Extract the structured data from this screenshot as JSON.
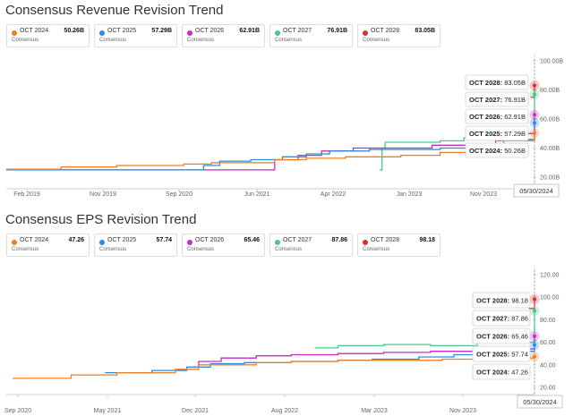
{
  "chart_data": [
    {
      "type": "line",
      "title": "Consensus Revenue Revision Trend",
      "legend_sub": "Consensus",
      "x_labels": [
        "Feb 2019",
        "Nov 2019",
        "Sep 2020",
        "Jun 2021",
        "Apr 2022",
        "Jan 2023",
        "Nov 2023"
      ],
      "y_ticks": [
        "100.00B",
        "80.00B",
        "60.00B",
        "40.00B",
        "20.00B"
      ],
      "ylim": [
        20,
        100
      ],
      "cursor_date": "05/30/2024",
      "series": [
        {
          "name": "OCT 2024",
          "value_label": "50.26B",
          "color": "#f07f21",
          "x": [
            "2018-11-01",
            "2019-06-01",
            "2020-01-01",
            "2020-09-15",
            "2021-01-01",
            "2021-09-01",
            "2022-01-01",
            "2022-06-01",
            "2023-01-01",
            "2023-06-01",
            "2023-10-01",
            "2024-02-01",
            "2024-05-30"
          ],
          "y": [
            25.5,
            27,
            28,
            29,
            30,
            32,
            33,
            34,
            35,
            37,
            40,
            45,
            50.26
          ]
        },
        {
          "name": "OCT 2025",
          "value_label": "57.29B",
          "color": "#2b8be6",
          "x": [
            "2018-11-01",
            "2020-09-01",
            "2020-12-01",
            "2021-02-01",
            "2021-06-01",
            "2021-10-01",
            "2022-01-01",
            "2022-04-01",
            "2022-09-01",
            "2023-01-01",
            "2023-06-01",
            "2023-11-01",
            "2024-02-01",
            "2024-05-30"
          ],
          "y": [
            25,
            25,
            28,
            31,
            32,
            34,
            36,
            38,
            39,
            39,
            40,
            42,
            46,
            57.29
          ]
        },
        {
          "name": "OCT 2026",
          "value_label": "62.91B",
          "color": "#c92bc3",
          "x": [
            "2018-11-01",
            "2021-06-15",
            "2021-09-01",
            "2021-12-01",
            "2022-03-01",
            "2022-07-01",
            "2023-01-01",
            "2023-05-01",
            "2023-10-01",
            "2024-01-01",
            "2024-03-01",
            "2024-05-30"
          ],
          "y": [
            25,
            25,
            32,
            35,
            38,
            40,
            40,
            42,
            43,
            45,
            50,
            62.91
          ]
        },
        {
          "name": "OCT 2027",
          "value_label": "76.91B",
          "color": "#47c98c",
          "x": [
            "2022-10-10",
            "2022-10-20",
            "2022-11-01",
            "2023-02-01",
            "2023-06-01",
            "2023-09-01",
            "2024-01-01",
            "2024-05-30"
          ],
          "y": [
            25,
            40,
            44,
            44,
            45,
            47,
            50,
            76.91
          ]
        },
        {
          "name": "OCT 2028",
          "value_label": "83.05B",
          "color": "#d6322c",
          "x": [
            "2024-05-15",
            "2024-05-30"
          ],
          "y": [
            75,
            83.05
          ]
        }
      ]
    },
    {
      "type": "line",
      "title": "Consensus EPS Revision Trend",
      "legend_sub": "Consensus",
      "x_labels": [
        "Sep 2020",
        "May 2021",
        "Dec 2021",
        "Aug 2022",
        "Mar 2023",
        "Nov 2023"
      ],
      "y_ticks": [
        "120.00",
        "100.00",
        "80.00",
        "60.00",
        "40.00",
        "20.00"
      ],
      "ylim": [
        20,
        120
      ],
      "cursor_date": "05/30/2024",
      "series": [
        {
          "name": "OCT 2024",
          "value_label": "47.26",
          "color": "#f07f21",
          "x": [
            "2020-09-01",
            "2021-02-01",
            "2021-06-01",
            "2021-11-01",
            "2022-01-01",
            "2022-06-01",
            "2022-09-01",
            "2023-01-01",
            "2023-06-01",
            "2023-10-01",
            "2024-01-01",
            "2024-05-30"
          ],
          "y": [
            28,
            31,
            33,
            36,
            40,
            42,
            43,
            44,
            44,
            45,
            46,
            47.26
          ]
        },
        {
          "name": "OCT 2025",
          "value_label": "57.74",
          "color": "#2b8be6",
          "x": [
            "2021-05-01",
            "2021-09-01",
            "2021-12-01",
            "2022-02-01",
            "2022-05-01",
            "2022-09-01",
            "2023-01-01",
            "2023-04-01",
            "2023-08-01",
            "2023-11-01",
            "2024-02-01",
            "2024-05-30"
          ],
          "y": [
            33,
            35,
            38,
            41,
            42,
            43,
            44,
            45,
            47,
            49,
            52,
            57.74
          ]
        },
        {
          "name": "OCT 2026",
          "value_label": "65.46",
          "color": "#c92bc3",
          "x": [
            "2021-12-15",
            "2022-01-01",
            "2022-03-01",
            "2022-06-01",
            "2022-09-01",
            "2023-01-01",
            "2023-05-01",
            "2023-09-01",
            "2024-01-01",
            "2024-05-30"
          ],
          "y": [
            38,
            43,
            46,
            48,
            49,
            50,
            51,
            52,
            54,
            65.46
          ]
        },
        {
          "name": "OCT 2027",
          "value_label": "87.86",
          "color": "#47c98c",
          "x": [
            "2022-11-01",
            "2023-01-01",
            "2023-05-01",
            "2023-09-01",
            "2024-01-01",
            "2024-05-30"
          ],
          "y": [
            55,
            57,
            58,
            57,
            60,
            87.86
          ]
        },
        {
          "name": "OCT 2028",
          "value_label": "98.18",
          "color": "#d6322c",
          "x": [
            "2024-05-15",
            "2024-05-30"
          ],
          "y": [
            90,
            98.18
          ]
        }
      ]
    }
  ]
}
